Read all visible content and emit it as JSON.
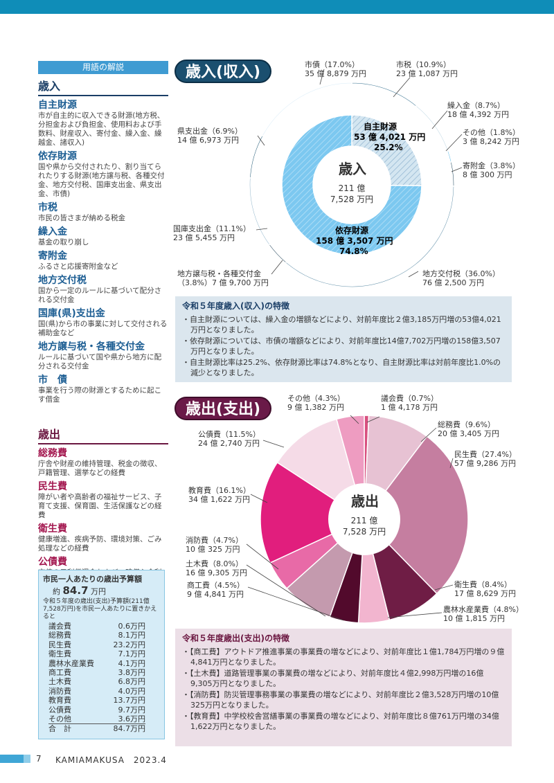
{
  "glossary": {
    "header": "用語の解説",
    "revenue_title": "歳入",
    "revenue_terms": [
      {
        "term": "自主財源",
        "desc": "市が自主的に収入できる財源(地方税、分担金および負担金、使用料および手数料、財産収入、寄付金、繰入金、繰越金、諸収入)"
      },
      {
        "term": "依存財源",
        "desc": "国や県から交付されたり、割り当てられたりする財源(地方譲与税、各種交付金、地方交付税、国庫支出金、県支出金、市債)"
      },
      {
        "term": "市税",
        "desc": "市民の皆さまが納める税金"
      },
      {
        "term": "繰入金",
        "desc": "基金の取り崩し"
      },
      {
        "term": "寄附金",
        "desc": "ふるさと応援寄附金など"
      },
      {
        "term": "地方交付税",
        "desc": "国から一定のルールに基づいて配分される交付金"
      },
      {
        "term": "国庫(県)支出金",
        "desc": "国(県)から市の事業に対して交付される補助金など"
      },
      {
        "term": "地方譲与税・各種交付金",
        "desc": "ルールに基づいて国や県から地方に配分される交付金"
      },
      {
        "term": "市　債",
        "desc": "事業を行う際の財源とするために起こす借金"
      }
    ],
    "expenditure_title": "歳出",
    "expenditure_terms": [
      {
        "term": "総務費",
        "desc": "庁舎や財産の維持管理、税金の徴収、戸籍管理、選挙などの経費"
      },
      {
        "term": "民生費",
        "desc": "障がい者や高齢者の福祉サービス、子育て支援、保育園、生活保護などの経費"
      },
      {
        "term": "衛生費",
        "desc": "健康増進、疾病予防、環境対策、ごみ処理などの経費"
      },
      {
        "term": "公債費",
        "desc": "市債の元利償還金および一時借入金利子を支払うための経費"
      }
    ]
  },
  "budget_box": {
    "title": "市民一人あたりの歳出予算額",
    "amount_prefix": "約",
    "amount_value": "84.7",
    "amount_unit": "万円",
    "note": "令和５年度の歳出(支出)予算額(211億7,528万円)を市民一人あたりに置きかえると",
    "rows": [
      [
        "議会費",
        "0.6万円"
      ],
      [
        "総務費",
        "8.1万円"
      ],
      [
        "民生費",
        "23.2万円"
      ],
      [
        "衛生費",
        "7.1万円"
      ],
      [
        "農林水産業費",
        "4.1万円"
      ],
      [
        "商工費",
        "3.8万円"
      ],
      [
        "土木費",
        "6.8万円"
      ],
      [
        "消防費",
        "4.0万円"
      ],
      [
        "教育費",
        "13.7万円"
      ],
      [
        "公債費",
        "9.7万円"
      ],
      [
        "その他",
        "3.6万円"
      ]
    ],
    "total_label": "合　計",
    "total_value": "84.7万円"
  },
  "revenue_heading": "歳入(収入)",
  "expenditure_heading": "歳出(支出)",
  "chart_data": [
    {
      "type": "pie",
      "title": "歳入",
      "center_label": "歳入",
      "center_amount_1": "211 億",
      "center_amount_2": "7,528 万円",
      "outer": [
        {
          "name": "市税",
          "pct": 10.9,
          "amount": "23 億 1,087 万円",
          "color": "#336f8e"
        },
        {
          "name": "繰入金",
          "pct": 8.7,
          "amount": "18 億 4,392 万円",
          "color": "#bdd6e3"
        },
        {
          "name": "その他",
          "pct": 1.8,
          "amount": "3 億 8,242 万円",
          "color": "#5bbbe8"
        },
        {
          "name": "寄附金",
          "pct": 3.8,
          "amount": "8 億 300 万円",
          "color": "#113b52"
        },
        {
          "name": "地方交付税",
          "pct": 36.0,
          "amount": "76 億 2,500 万円",
          "color": "#5f8ea8"
        },
        {
          "name": "地方譲与税・各種交付金",
          "pct": 3.8,
          "amount": "7 億 9,700 万円",
          "color": "#0c3148"
        },
        {
          "name": "国庫支出金",
          "pct": 11.1,
          "amount": "23 億 5,455 万円",
          "color": "#90b5cb"
        },
        {
          "name": "県支出金",
          "pct": 6.9,
          "amount": "14 億 6,973 万円",
          "color": "#1b5572"
        },
        {
          "name": "市債",
          "pct": 17.0,
          "amount": "35 億 8,879 万円",
          "color": "#d8ebf7"
        }
      ],
      "inner": [
        {
          "name": "自主財源",
          "pct": 25.2,
          "amount": "53 億 4,021 万円"
        },
        {
          "name": "依存財源",
          "pct": 74.8,
          "amount": "158 億 3,507 万円"
        }
      ]
    },
    {
      "type": "pie",
      "title": "歳出",
      "center_label": "歳出",
      "center_amount_1": "211 億",
      "center_amount_2": "7,528 万円",
      "slices": [
        {
          "name": "議会費",
          "pct": 0.7,
          "amount": "1 億 4,178 万円",
          "color": "#d8507f"
        },
        {
          "name": "総務費",
          "pct": 9.6,
          "amount": "20 億 3,405 万円",
          "color": "#e7c2d3"
        },
        {
          "name": "民生費",
          "pct": 27.4,
          "amount": "57 億 9,286 万円",
          "color": "#c57ea0"
        },
        {
          "name": "衛生費",
          "pct": 8.4,
          "amount": "17 億 8,629 万円",
          "color": "#6f1d45"
        },
        {
          "name": "農林水産業費",
          "pct": 4.8,
          "amount": "10 億 1,815 万円",
          "color": "#f2b5cf"
        },
        {
          "name": "商工費",
          "pct": 4.5,
          "amount": "9 億 4,841 万円",
          "color": "#520a2c"
        },
        {
          "name": "土木費",
          "pct": 8.0,
          "amount": "16 億 9,305 万円",
          "color": "#c49aae"
        },
        {
          "name": "消防費",
          "pct": 4.7,
          "amount": "10 億 325 万円",
          "color": "#e86aa7"
        },
        {
          "name": "教育費",
          "pct": 16.1,
          "amount": "34 億 1,622 万円",
          "color": "#e11e7d"
        },
        {
          "name": "公債費",
          "pct": 11.5,
          "amount": "24 億 2,740 万円",
          "color": "#f5dbe7"
        },
        {
          "name": "その他",
          "pct": 4.3,
          "amount": "9 億 1,382 万円",
          "color": "#ee9cc1"
        }
      ]
    }
  ],
  "revenue_labels": {
    "shizei": "市税（10.9%）",
    "shizei_amt": "23 億 1,087 万円",
    "kuriire": "繰入金（8.7%）",
    "kuriire_amt": "18 億 4,392 万円",
    "sonota": "その他（1.8%）",
    "sonota_amt": "3 億 8,242 万円",
    "kifu": "寄附金（3.8%）",
    "kifu_amt": "8 億 300 万円",
    "koufuzei": "地方交付税（36.0%）",
    "koufuzei_amt": "76 億 2,500 万円",
    "jouyo": "地方譲与税・各種交付金",
    "jouyo_amt": "（3.8%）7 億 9,700 万円",
    "kokko": "国庫支出金（11.1%）",
    "kokko_amt": "23 億 5,455 万円",
    "ken": "県支出金（6.9%）",
    "ken_amt": "14 億 6,973 万円",
    "shisai": "市債（17.0%）",
    "shisai_amt": "35 億 8,879 万円",
    "jishu": "自主財源",
    "jishu_amt": "53 億 4,021 万円",
    "jishu_pct": "25.2%",
    "izon": "依存財源",
    "izon_amt": "158 億 3,507 万円",
    "izon_pct": "74.8%"
  },
  "expenditure_labels": {
    "gikai": "議会費（0.7%）",
    "gikai_amt": "1 億 4,178 万円",
    "soumu": "総務費（9.6%）",
    "soumu_amt": "20 億 3,405 万円",
    "minsei": "民生費（27.4%）",
    "minsei_amt": "57 億 9,286 万円",
    "eisei": "衛生費（8.4%）",
    "eisei_amt": "17 億 8,629 万円",
    "nourin": "農林水産業費（4.8%）",
    "nourin_amt": "10 億 1,815 万円",
    "shoukou": "商工費（4.5%）",
    "shoukou_amt": "9 億 4,841 万円",
    "doboku": "土木費（8.0%）",
    "doboku_amt": "16 億 9,305 万円",
    "shoubou": "消防費（4.7%）",
    "shoubou_amt": "10 億 325 万円",
    "kyouiku": "教育費（16.1%）",
    "kyouiku_amt": "34 億 1,622 万円",
    "kousai": "公債費（11.5%）",
    "kousai_amt": "24 億 2,740 万円",
    "sonota": "その他（4.3%）",
    "sonota_amt": "9 億 1,382 万円"
  },
  "revenue_note": {
    "title": "令和５年度歳入(収入)の特徴",
    "items": [
      "自主財源については、繰入金の増額などにより、対前年度比２億3,185万円増の53億4,021万円となりました。",
      "依存財源については、市債の増額などにより、対前年度比14億7,702万円増の158億3,507万円となりました。",
      "自主財源比率は25.2%、依存財源比率は74.8%となり、自主財源比率は対前年度比1.0%の減少となりました。"
    ]
  },
  "expenditure_note": {
    "title": "令和５年度歳出(支出)の特徴",
    "items": [
      "【商工費】アウトドア推進事業の事業費の増などにより、対前年度比１億1,784万円増の９億4,841万円となりました。",
      "【土木費】道路管理事業の事業費の増などにより、対前年度比４億2,998万円増の16億9,305万円となりました。",
      "【消防費】防災管理事務事業の事業費の増などにより、対前年度比２億3,528万円増の10億325万円となりました。",
      "【教育費】中学校校舎営繕事業の事業費の増などにより、対前年度比８億761万円増の34億1,622万円となりました。"
    ]
  },
  "footer": {
    "page": "7",
    "magazine": "KAMIAMAKUSA　2023.4"
  },
  "colors": {
    "topbar": "#0f8db8",
    "revenue_accent": "#1b4f6f",
    "expenditure_accent": "#6a1a48"
  }
}
